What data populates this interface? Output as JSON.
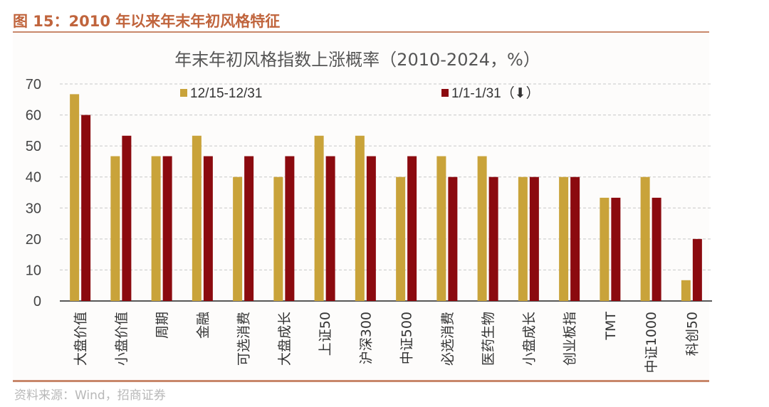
{
  "figure_title": "图 15：2010 年以来年末年初风格特征",
  "source": "资料来源：Wind，招商证券",
  "chart_data": {
    "type": "bar",
    "title": "年末年初风格指数上涨概率（2010-2024，%）",
    "xlabel": "",
    "ylabel": "",
    "ylim": [
      0,
      70
    ],
    "yticks": [
      0,
      10,
      20,
      30,
      40,
      50,
      60,
      70
    ],
    "grid": true,
    "legend_position": "top",
    "categories": [
      "大盘价值",
      "小盘价值",
      "周期",
      "金融",
      "可选消费",
      "大盘成长",
      "上证50",
      "沪深300",
      "中证500",
      "必选消费",
      "医药生物",
      "小盘成长",
      "创业板指",
      "TMT",
      "中证1000",
      "科创50"
    ],
    "series": [
      {
        "name": "12/15-12/31",
        "color": "#c9a33a",
        "values": [
          66.7,
          46.7,
          46.7,
          53.3,
          40.0,
          40.0,
          53.3,
          53.3,
          40.0,
          46.7,
          46.7,
          40.0,
          40.0,
          33.3,
          40.0,
          6.7
        ]
      },
      {
        "name": "1/1-1/31（⬇）",
        "color": "#8b0a0f",
        "values": [
          60.0,
          53.3,
          46.7,
          46.7,
          46.7,
          46.7,
          46.7,
          46.7,
          46.7,
          40.0,
          40.0,
          40.0,
          40.0,
          33.3,
          33.3,
          20.0
        ]
      }
    ]
  }
}
